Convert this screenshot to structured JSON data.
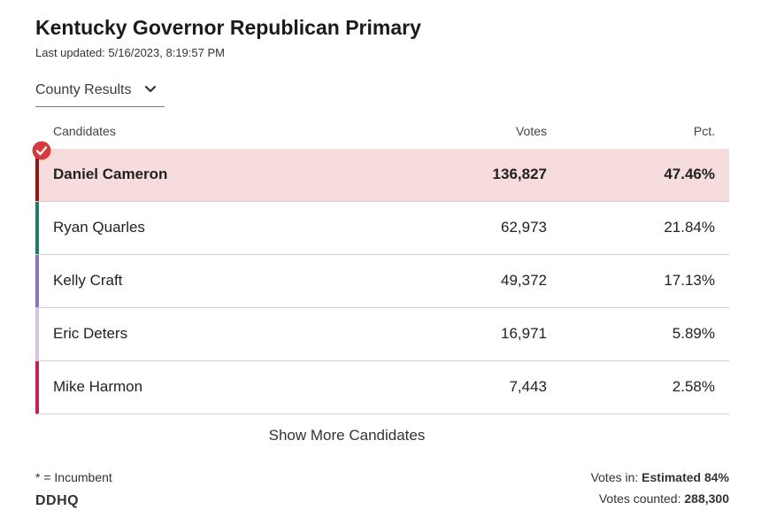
{
  "header": {
    "title": "Kentucky Governor Republican Primary",
    "last_updated_label": "Last updated:",
    "last_updated_value": "5/16/2023, 8:19:57 PM"
  },
  "dropdown": {
    "selected": "County Results",
    "icon": "chevron-down-icon"
  },
  "table": {
    "columns": {
      "name": "Candidates",
      "votes": "Votes",
      "pct": "Pct."
    },
    "rows": [
      {
        "name": "Daniel Cameron",
        "votes": "136,827",
        "pct": "47.46%",
        "color": "#8b1a1a",
        "winner": true
      },
      {
        "name": "Ryan Quarles",
        "votes": "62,973",
        "pct": "21.84%",
        "color": "#1f7a6b",
        "winner": false
      },
      {
        "name": "Kelly Craft",
        "votes": "49,372",
        "pct": "17.13%",
        "color": "#8c72b8",
        "winner": false
      },
      {
        "name": "Eric Deters",
        "votes": "16,971",
        "pct": "5.89%",
        "color": "#d9c2e6",
        "winner": false
      },
      {
        "name": "Mike Harmon",
        "votes": "7,443",
        "pct": "2.58%",
        "color": "#c2244f",
        "winner": false
      }
    ]
  },
  "show_more_label": "Show More Candidates",
  "footer": {
    "incumbent_note": "* = Incumbent",
    "logo_text": "DDHQ",
    "votes_in_label": "Votes in:",
    "votes_in_value": "Estimated 84%",
    "votes_counted_label": "Votes counted:",
    "votes_counted_value": "288,300"
  },
  "colors": {
    "winner_row_bg": "#f6dcdc",
    "winner_check": "#d63a3a"
  }
}
